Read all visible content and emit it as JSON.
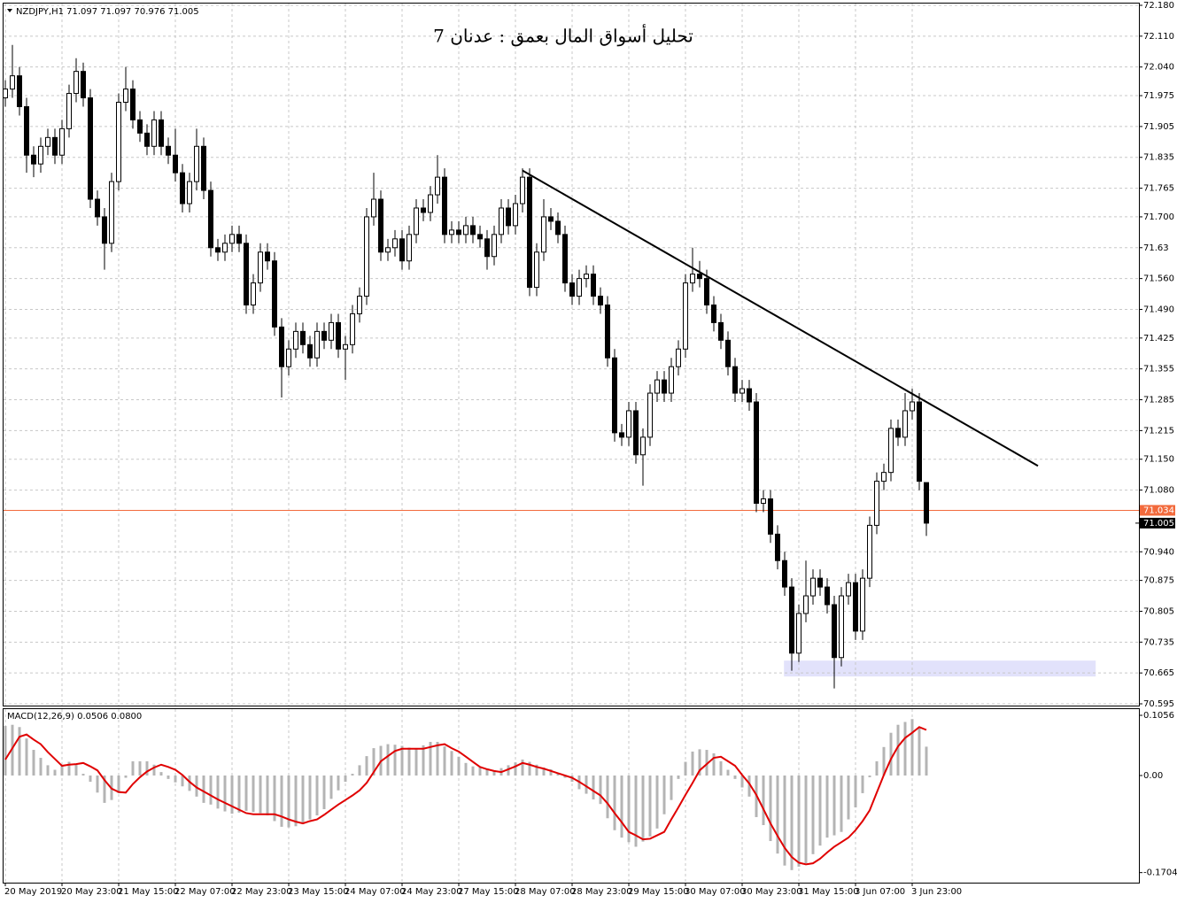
{
  "chart_data": {
    "type": "candlestick",
    "title": "تحليل أسواق المال بعمق : عدنان 7",
    "header": "NZDJPY,H1  71.097 71.097 70.976 71.005",
    "categories": [
      "20 May 2019",
      null,
      null,
      null,
      null,
      null,
      null,
      null,
      "20 May 23:00",
      null,
      null,
      null,
      null,
      null,
      null,
      null,
      "21 May 15:00",
      null,
      null,
      null,
      null,
      null,
      null,
      null,
      "22 May 07:00",
      null,
      null,
      null,
      null,
      null,
      null,
      null,
      "22 May 23:00",
      null,
      null,
      null,
      null,
      null,
      null,
      null,
      "23 May 15:00",
      null,
      null,
      null,
      null,
      null,
      null,
      null,
      "24 May 07:00",
      null,
      null,
      null,
      null,
      null,
      null,
      null,
      "24 May 23:00",
      null,
      null,
      null,
      null,
      null,
      null,
      null,
      "27 May 15:00",
      null,
      null,
      null,
      null,
      null,
      null,
      null,
      "28 May 07:00",
      null,
      null,
      null,
      null,
      null,
      null,
      null,
      "28 May 23:00",
      null,
      null,
      null,
      null,
      null,
      null,
      null,
      "29 May 15:00",
      null,
      null,
      null,
      null,
      null,
      null,
      null,
      "30 May 07:00",
      null,
      null,
      null,
      null,
      null,
      null,
      null,
      "30 May 23:00",
      null,
      null,
      null,
      null,
      null,
      null,
      null,
      "31 May 15:00",
      null,
      null,
      null,
      null,
      null,
      null,
      null,
      "3 Jun 07:00",
      null,
      null,
      null,
      null,
      null,
      null,
      null,
      "3 Jun 23:00",
      null,
      null
    ],
    "candles": [
      [
        71.97,
        72.01,
        71.95,
        71.99
      ],
      [
        71.99,
        72.09,
        71.97,
        72.02
      ],
      [
        72.02,
        72.04,
        71.93,
        71.95
      ],
      [
        71.95,
        71.97,
        71.8,
        71.84
      ],
      [
        71.84,
        71.86,
        71.79,
        71.82
      ],
      [
        71.82,
        71.88,
        71.8,
        71.86
      ],
      [
        71.86,
        71.9,
        71.84,
        71.88
      ],
      [
        71.88,
        71.9,
        71.82,
        71.84
      ],
      [
        71.84,
        71.92,
        71.82,
        71.9
      ],
      [
        71.9,
        72.0,
        71.88,
        71.98
      ],
      [
        71.98,
        72.06,
        71.96,
        72.03
      ],
      [
        72.03,
        72.05,
        71.95,
        71.97
      ],
      [
        71.97,
        71.99,
        71.72,
        71.74
      ],
      [
        71.74,
        71.76,
        71.68,
        71.7
      ],
      [
        71.7,
        71.72,
        71.58,
        71.64
      ],
      [
        71.64,
        71.8,
        71.62,
        71.78
      ],
      [
        71.78,
        71.98,
        71.76,
        71.96
      ],
      [
        71.96,
        72.04,
        71.94,
        71.99
      ],
      [
        71.99,
        72.01,
        71.9,
        71.92
      ],
      [
        71.92,
        71.94,
        71.87,
        71.89
      ],
      [
        71.89,
        71.91,
        71.84,
        71.86
      ],
      [
        71.86,
        71.94,
        71.84,
        71.92
      ],
      [
        71.92,
        71.94,
        71.84,
        71.86
      ],
      [
        71.86,
        71.88,
        71.82,
        71.84
      ],
      [
        71.84,
        71.9,
        71.78,
        71.8
      ],
      [
        71.8,
        71.82,
        71.71,
        71.73
      ],
      [
        71.73,
        71.8,
        71.71,
        71.78
      ],
      [
        71.78,
        71.9,
        71.76,
        71.86
      ],
      [
        71.86,
        71.88,
        71.74,
        71.76
      ],
      [
        71.76,
        71.78,
        71.61,
        71.63
      ],
      [
        71.63,
        71.65,
        71.6,
        71.62
      ],
      [
        71.62,
        71.66,
        71.6,
        71.64
      ],
      [
        71.64,
        71.68,
        71.62,
        71.66
      ],
      [
        71.66,
        71.68,
        71.62,
        71.64
      ],
      [
        71.64,
        71.66,
        71.48,
        71.5
      ],
      [
        71.5,
        71.57,
        71.48,
        71.55
      ],
      [
        71.55,
        71.64,
        71.53,
        71.62
      ],
      [
        71.62,
        71.64,
        71.58,
        71.6
      ],
      [
        71.6,
        71.62,
        71.43,
        71.45
      ],
      [
        71.45,
        71.47,
        71.29,
        71.36
      ],
      [
        71.36,
        71.42,
        71.34,
        71.4
      ],
      [
        71.4,
        71.46,
        71.38,
        71.44
      ],
      [
        71.44,
        71.46,
        71.39,
        71.41
      ],
      [
        71.41,
        71.43,
        71.36,
        71.38
      ],
      [
        71.38,
        71.46,
        71.36,
        71.44
      ],
      [
        71.44,
        71.46,
        71.4,
        71.42
      ],
      [
        71.42,
        71.48,
        71.4,
        71.46
      ],
      [
        71.46,
        71.48,
        71.38,
        71.4
      ],
      [
        71.4,
        71.43,
        71.33,
        71.41
      ],
      [
        71.41,
        71.5,
        71.39,
        71.48
      ],
      [
        71.48,
        71.54,
        71.46,
        71.52
      ],
      [
        71.52,
        71.72,
        71.5,
        71.7
      ],
      [
        71.7,
        71.8,
        71.68,
        71.74
      ],
      [
        71.74,
        71.76,
        71.6,
        71.62
      ],
      [
        71.62,
        71.65,
        71.6,
        71.63
      ],
      [
        71.63,
        71.67,
        71.61,
        71.65
      ],
      [
        71.65,
        71.67,
        71.58,
        71.6
      ],
      [
        71.6,
        71.68,
        71.58,
        71.66
      ],
      [
        71.66,
        71.74,
        71.64,
        71.72
      ],
      [
        71.72,
        71.74,
        71.69,
        71.71
      ],
      [
        71.71,
        71.77,
        71.69,
        71.75
      ],
      [
        71.75,
        71.84,
        71.73,
        71.79
      ],
      [
        71.79,
        71.81,
        71.64,
        71.66
      ],
      [
        71.66,
        71.69,
        71.64,
        71.67
      ],
      [
        71.67,
        71.69,
        71.64,
        71.66
      ],
      [
        71.66,
        71.7,
        71.64,
        71.68
      ],
      [
        71.68,
        71.7,
        71.64,
        71.66
      ],
      [
        71.66,
        71.68,
        71.63,
        71.65
      ],
      [
        71.65,
        71.67,
        71.58,
        71.61
      ],
      [
        71.61,
        71.68,
        71.59,
        71.66
      ],
      [
        71.66,
        71.74,
        71.64,
        71.72
      ],
      [
        71.72,
        71.74,
        71.66,
        71.68
      ],
      [
        71.68,
        71.75,
        71.66,
        71.73
      ],
      [
        71.73,
        71.81,
        71.71,
        71.79
      ],
      [
        71.79,
        71.81,
        71.52,
        71.54
      ],
      [
        71.54,
        71.64,
        71.52,
        71.62
      ],
      [
        71.62,
        71.74,
        71.6,
        71.7
      ],
      [
        71.7,
        71.72,
        71.67,
        71.69
      ],
      [
        71.69,
        71.71,
        71.64,
        71.66
      ],
      [
        71.66,
        71.68,
        71.53,
        71.55
      ],
      [
        71.55,
        71.57,
        71.5,
        71.52
      ],
      [
        71.52,
        71.58,
        71.5,
        71.56
      ],
      [
        71.56,
        71.59,
        71.54,
        71.57
      ],
      [
        71.57,
        71.59,
        71.5,
        71.52
      ],
      [
        71.52,
        71.54,
        71.48,
        71.5
      ],
      [
        71.5,
        71.52,
        71.36,
        71.38
      ],
      [
        71.38,
        71.4,
        71.19,
        71.21
      ],
      [
        71.21,
        71.23,
        71.18,
        71.2
      ],
      [
        71.2,
        71.28,
        71.18,
        71.26
      ],
      [
        71.26,
        71.28,
        71.14,
        71.16
      ],
      [
        71.16,
        71.22,
        71.09,
        71.2
      ],
      [
        71.2,
        71.32,
        71.18,
        71.3
      ],
      [
        71.3,
        71.35,
        71.28,
        71.33
      ],
      [
        71.33,
        71.35,
        71.28,
        71.3
      ],
      [
        71.3,
        71.38,
        71.28,
        71.36
      ],
      [
        71.36,
        71.42,
        71.34,
        71.4
      ],
      [
        71.4,
        71.57,
        71.38,
        71.55
      ],
      [
        71.55,
        71.63,
        71.53,
        71.57
      ],
      [
        71.57,
        71.6,
        71.54,
        71.56
      ],
      [
        71.56,
        71.58,
        71.48,
        71.5
      ],
      [
        71.5,
        71.52,
        71.44,
        71.46
      ],
      [
        71.46,
        71.48,
        71.4,
        71.42
      ],
      [
        71.42,
        71.44,
        71.34,
        71.36
      ],
      [
        71.36,
        71.38,
        71.28,
        71.3
      ],
      [
        71.3,
        71.33,
        71.28,
        71.31
      ],
      [
        71.31,
        71.33,
        71.26,
        71.28
      ],
      [
        71.28,
        71.3,
        71.03,
        71.05
      ],
      [
        71.05,
        71.08,
        71.03,
        71.06
      ],
      [
        71.06,
        71.08,
        70.96,
        70.98
      ],
      [
        70.98,
        71.0,
        70.9,
        70.92
      ],
      [
        70.92,
        70.94,
        70.84,
        70.86
      ],
      [
        70.86,
        70.88,
        70.67,
        70.71
      ],
      [
        70.71,
        70.82,
        70.69,
        70.8
      ],
      [
        70.8,
        70.92,
        70.78,
        70.84
      ],
      [
        70.84,
        70.9,
        70.82,
        70.88
      ],
      [
        70.88,
        70.9,
        70.84,
        70.86
      ],
      [
        70.86,
        70.88,
        70.8,
        70.82
      ],
      [
        70.82,
        70.84,
        70.63,
        70.7
      ],
      [
        70.7,
        70.86,
        70.68,
        70.84
      ],
      [
        70.84,
        70.89,
        70.82,
        70.87
      ],
      [
        70.87,
        70.89,
        70.74,
        70.76
      ],
      [
        70.76,
        70.9,
        70.74,
        70.88
      ],
      [
        70.88,
        71.02,
        70.86,
        71.0
      ],
      [
        71.0,
        71.12,
        70.98,
        71.1
      ],
      [
        71.1,
        71.14,
        71.08,
        71.12
      ],
      [
        71.12,
        71.24,
        71.1,
        71.22
      ],
      [
        71.22,
        71.24,
        71.18,
        71.2
      ],
      [
        71.2,
        71.3,
        71.18,
        71.26
      ],
      [
        71.26,
        71.31,
        71.24,
        71.28
      ],
      [
        71.28,
        71.3,
        71.08,
        71.1
      ],
      [
        71.097,
        71.097,
        70.976,
        71.005
      ]
    ],
    "ylim": [
      70.591,
      72.184
    ],
    "yticks": [
      {
        "value": 72.18,
        "label": "72.180"
      },
      {
        "value": 72.11,
        "label": "72.110"
      },
      {
        "value": 72.04,
        "label": "72.040"
      },
      71.975,
      71.905,
      71.835,
      71.765,
      {
        "value": 71.7,
        "label": "71.700"
      },
      71.63,
      {
        "value": 71.56,
        "label": "71.560"
      },
      {
        "value": 71.49,
        "label": "71.490"
      },
      71.425,
      71.355,
      71.285,
      71.215,
      {
        "value": 71.15,
        "label": "71.150"
      },
      {
        "value": 71.08,
        "label": "71.080"
      },
      {
        "value": 70.94,
        "label": "70.940"
      },
      70.875,
      70.805,
      70.735,
      70.665,
      70.595
    ],
    "grid": true,
    "price_line": {
      "value": 71.034,
      "color": "#f26a3c"
    },
    "bid": 71.005,
    "trendline": {
      "x": [
        73,
        145.75
      ],
      "y": [
        71.805,
        71.135
      ],
      "color": "#000000"
    },
    "zone": {
      "x": [
        109.9,
        153.9
      ],
      "y": [
        70.657,
        70.693
      ],
      "color": "#e2e2fb"
    },
    "macd": {
      "label": "MACD(12,26,9) 0.0506 0.0800",
      "ylim": [
        -0.188,
        0.1165
      ],
      "yticks": [
        0.1056,
        {
          "value": 0,
          "label": "0.00"
        },
        -0.1704
      ],
      "histogram": {
        "color": "#b4b4b4",
        "values": [
          0.087,
          0.089,
          0.085,
          0.065,
          0.045,
          0.031,
          0.018,
          0.01,
          0.017,
          0.024,
          0.019,
          0.003,
          -0.011,
          -0.03,
          -0.048,
          -0.043,
          -0.031,
          -0.004,
          0.025,
          0.025,
          0.025,
          0.019,
          0.006,
          -0.006,
          -0.012,
          -0.019,
          -0.027,
          -0.037,
          -0.048,
          -0.051,
          -0.058,
          -0.063,
          -0.067,
          -0.065,
          -0.062,
          -0.064,
          -0.066,
          -0.07,
          -0.08,
          -0.09,
          -0.091,
          -0.089,
          -0.085,
          -0.077,
          -0.07,
          -0.059,
          -0.041,
          -0.026,
          -0.011,
          0.003,
          0.018,
          0.034,
          0.048,
          0.052,
          0.055,
          0.054,
          0.052,
          0.049,
          0.047,
          0.053,
          0.059,
          0.059,
          0.051,
          0.043,
          0.033,
          0.022,
          0.016,
          0.014,
          0.012,
          0.009,
          0.013,
          0.018,
          0.023,
          0.028,
          0.024,
          0.019,
          0.014,
          0.011,
          0.003,
          -0.004,
          -0.011,
          -0.024,
          -0.032,
          -0.042,
          -0.05,
          -0.075,
          -0.096,
          -0.109,
          -0.117,
          -0.125,
          -0.116,
          -0.107,
          -0.093,
          -0.068,
          -0.043,
          -0.006,
          0.024,
          0.042,
          0.046,
          0.045,
          0.039,
          0.025,
          0.01,
          -0.006,
          -0.021,
          -0.037,
          -0.073,
          -0.087,
          -0.115,
          -0.137,
          -0.158,
          -0.166,
          -0.16,
          -0.154,
          -0.138,
          -0.123,
          -0.109,
          -0.105,
          -0.099,
          -0.077,
          -0.056,
          -0.031,
          -0.003,
          0.025,
          0.05,
          0.075,
          0.089,
          0.094,
          0.099,
          0.085,
          0.0506
        ]
      },
      "signal": {
        "color": "#e00000",
        "values": [
          0.028,
          0.048,
          0.068,
          0.072,
          0.063,
          0.055,
          0.041,
          0.029,
          0.017,
          0.019,
          0.02,
          0.022,
          0.016,
          0.009,
          -0.008,
          -0.023,
          -0.029,
          -0.03,
          -0.015,
          -0.003,
          0.007,
          0.014,
          0.019,
          0.015,
          0.01,
          0.001,
          -0.011,
          -0.021,
          -0.028,
          -0.035,
          -0.042,
          -0.048,
          -0.054,
          -0.06,
          -0.066,
          -0.068,
          -0.068,
          -0.068,
          -0.068,
          -0.072,
          -0.077,
          -0.081,
          -0.084,
          -0.08,
          -0.077,
          -0.069,
          -0.06,
          -0.051,
          -0.043,
          -0.035,
          -0.026,
          -0.013,
          0.006,
          0.025,
          0.034,
          0.043,
          0.047,
          0.047,
          0.047,
          0.047,
          0.05,
          0.053,
          0.055,
          0.048,
          0.042,
          0.033,
          0.024,
          0.015,
          0.011,
          0.008,
          0.006,
          0.011,
          0.016,
          0.022,
          0.019,
          0.015,
          0.012,
          0.008,
          0.004,
          0.0,
          -0.004,
          -0.011,
          -0.019,
          -0.027,
          -0.035,
          -0.049,
          -0.066,
          -0.082,
          -0.099,
          -0.105,
          -0.112,
          -0.111,
          -0.105,
          -0.099,
          -0.077,
          -0.056,
          -0.034,
          -0.013,
          0.009,
          0.02,
          0.031,
          0.033,
          0.025,
          0.017,
          0.001,
          -0.014,
          -0.034,
          -0.059,
          -0.084,
          -0.106,
          -0.127,
          -0.143,
          -0.153,
          -0.156,
          -0.154,
          -0.146,
          -0.135,
          -0.125,
          -0.117,
          -0.109,
          -0.096,
          -0.08,
          -0.061,
          -0.03,
          0.001,
          0.029,
          0.051,
          0.066,
          0.075,
          0.085,
          0.08
        ]
      }
    }
  }
}
